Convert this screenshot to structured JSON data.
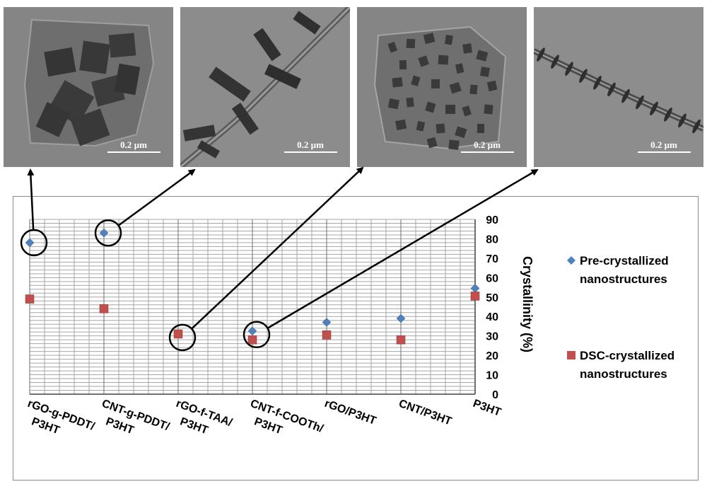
{
  "images": [
    {
      "scale_label": "0.2 µm",
      "alt": "rGO sheet with square P3HT crystals"
    },
    {
      "scale_label": "0.2 µm",
      "alt": "CNT with rod-like P3HT crystals"
    },
    {
      "scale_label": "0.2 µm",
      "alt": "rGO sheet with small P3HT crystals"
    },
    {
      "scale_label": "0.2 µm",
      "alt": "CNT with short P3HT crystals"
    }
  ],
  "chart_data": {
    "type": "scatter",
    "title": "",
    "ylabel": "Crystallinity (%)",
    "xlabel": "",
    "ylim": [
      0,
      90
    ],
    "ytick_step": 10,
    "categories": [
      [
        "rGO-g-PDDT/",
        "P3HT"
      ],
      [
        "CNT-g-PDDT/",
        "P3HT"
      ],
      [
        "rGO-f-TAA/",
        "P3HT"
      ],
      [
        "CNT-f-COOTh/",
        "P3HT"
      ],
      [
        "rGO/P3HT"
      ],
      [
        "CNT/P3HT"
      ],
      [
        "P3HT"
      ]
    ],
    "series": [
      {
        "name": "Pre-crystallized nanostructures",
        "legend_lines": [
          "Pre-crystallized",
          "nanostructures"
        ],
        "marker": "diamond",
        "color": "#4f81bd",
        "values": [
          78,
          83,
          31,
          32.5,
          37,
          39,
          54.5
        ]
      },
      {
        "name": "DSC-crystallized nanostructures",
        "legend_lines": [
          "DSC-crystallized",
          "nanostructures"
        ],
        "marker": "square",
        "color": "#c0504d",
        "values": [
          49,
          44,
          31,
          28,
          30.5,
          28,
          50.5
        ]
      }
    ],
    "highlighted": [
      0,
      1,
      2,
      3
    ],
    "grid": true
  }
}
